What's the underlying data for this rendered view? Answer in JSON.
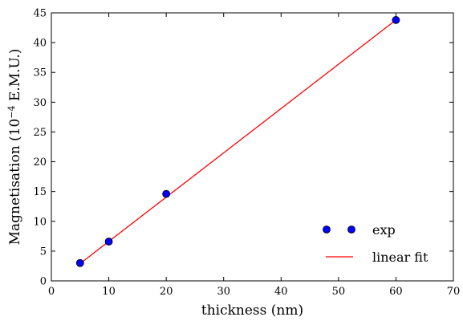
{
  "chart_data": {
    "type": "scatter",
    "title": "",
    "xlabel": "thickness (nm)",
    "ylabel_main": "Magnetisation (10",
    "ylabel_exp": "−4",
    "ylabel_tail": " E.M.U.)",
    "xlim": [
      0,
      70
    ],
    "ylim": [
      0,
      45
    ],
    "xticks": [
      0,
      10,
      20,
      30,
      40,
      50,
      60,
      70
    ],
    "yticks": [
      0,
      5,
      10,
      15,
      20,
      25,
      30,
      35,
      40,
      45
    ],
    "grid": false,
    "legend_position": "lower-right",
    "series": [
      {
        "name": "exp",
        "kind": "markers",
        "color": "#0000ff",
        "x": [
          5,
          10,
          20,
          60
        ],
        "y": [
          3.0,
          6.6,
          14.6,
          43.8
        ]
      },
      {
        "name": "linear fit",
        "kind": "line",
        "color": "#ff0000",
        "x": [
          5,
          60
        ],
        "y": [
          2.9,
          43.8
        ]
      }
    ]
  }
}
